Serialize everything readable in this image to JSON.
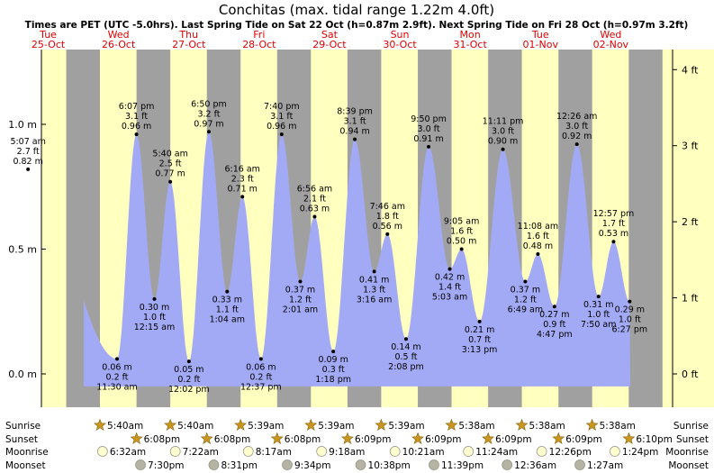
{
  "chart_data": {
    "type": "area",
    "title": "Conchitas (max. tidal range 1.22m 4.0ft)",
    "subtitle": "Times are PET (UTC -5.0hrs). Last Spring Tide on Sat 22 Oct (h=0.87m 2.9ft). Next Spring Tide on Fri 28 Oct (h=0.97m 3.2ft)",
    "days": [
      {
        "name": "Tue",
        "date": "25-Oct"
      },
      {
        "name": "Wed",
        "date": "26-Oct"
      },
      {
        "name": "Thu",
        "date": "27-Oct"
      },
      {
        "name": "Fri",
        "date": "28-Oct"
      },
      {
        "name": "Sat",
        "date": "29-Oct"
      },
      {
        "name": "Sun",
        "date": "30-Oct"
      },
      {
        "name": "Mon",
        "date": "31-Oct"
      },
      {
        "name": "Tue",
        "date": "01-Nov"
      },
      {
        "name": "Wed",
        "date": "02-Nov"
      }
    ],
    "y_left_ticks": [
      {
        "value": 0.0,
        "label": "0.0 m"
      },
      {
        "value": 0.5,
        "label": "0.5 m"
      },
      {
        "value": 1.0,
        "label": "1.0 m"
      }
    ],
    "y_right_ticks": [
      {
        "value": 0,
        "label": "0 ft"
      },
      {
        "value": 1,
        "label": "1 ft"
      },
      {
        "value": 2,
        "label": "2 ft"
      },
      {
        "value": 3,
        "label": "3 ft"
      },
      {
        "value": 4,
        "label": "4 ft"
      }
    ],
    "ylim_m": [
      -0.13,
      1.3
    ],
    "tides": [
      {
        "day": 0,
        "time": "5:07 am",
        "hour": 5.12,
        "h": 0.82,
        "type": "high",
        "ft": "2.7 ft",
        "m": "0.82 m"
      },
      {
        "day": 1,
        "time": "11:30 am",
        "hour": 11.5,
        "h": 0.06,
        "type": "low",
        "ft": "0.2 ft",
        "m": "0.06 m"
      },
      {
        "day": 1,
        "time": "6:07 pm",
        "hour": 18.12,
        "h": 0.96,
        "type": "high",
        "ft": "3.1 ft",
        "m": "0.96 m"
      },
      {
        "day": 2,
        "time": "12:15 am",
        "hour": 0.25,
        "h": 0.3,
        "type": "low",
        "ft": "1.0 ft",
        "m": "0.30 m"
      },
      {
        "day": 2,
        "time": "5:40 am",
        "hour": 5.67,
        "h": 0.77,
        "type": "high",
        "ft": "2.5 ft",
        "m": "0.77 m"
      },
      {
        "day": 2,
        "time": "12:02 pm",
        "hour": 12.03,
        "h": 0.05,
        "type": "low",
        "ft": "0.2 ft",
        "m": "0.05 m"
      },
      {
        "day": 2,
        "time": "6:50 pm",
        "hour": 18.83,
        "h": 0.97,
        "type": "high",
        "ft": "3.2 ft",
        "m": "0.97 m"
      },
      {
        "day": 3,
        "time": "1:04 am",
        "hour": 1.07,
        "h": 0.33,
        "type": "low",
        "ft": "1.1 ft",
        "m": "0.33 m"
      },
      {
        "day": 3,
        "time": "6:16 am",
        "hour": 6.27,
        "h": 0.71,
        "type": "high",
        "ft": "2.3 ft",
        "m": "0.71 m"
      },
      {
        "day": 3,
        "time": "12:37 pm",
        "hour": 12.62,
        "h": 0.06,
        "type": "low",
        "ft": "0.2 ft",
        "m": "0.06 m"
      },
      {
        "day": 3,
        "time": "7:40 pm",
        "hour": 19.67,
        "h": 0.96,
        "type": "high",
        "ft": "3.1 ft",
        "m": "0.96 m"
      },
      {
        "day": 4,
        "time": "2:01 am",
        "hour": 2.02,
        "h": 0.37,
        "type": "low",
        "ft": "1.2 ft",
        "m": "0.37 m"
      },
      {
        "day": 4,
        "time": "6:56 am",
        "hour": 6.93,
        "h": 0.63,
        "type": "high",
        "ft": "2.1 ft",
        "m": "0.63 m"
      },
      {
        "day": 4,
        "time": "1:18 pm",
        "hour": 13.3,
        "h": 0.09,
        "type": "low",
        "ft": "0.3 ft",
        "m": "0.09 m"
      },
      {
        "day": 4,
        "time": "8:39 pm",
        "hour": 20.65,
        "h": 0.94,
        "type": "high",
        "ft": "3.1 ft",
        "m": "0.94 m"
      },
      {
        "day": 5,
        "time": "3:16 am",
        "hour": 3.27,
        "h": 0.41,
        "type": "low",
        "ft": "1.3 ft",
        "m": "0.41 m"
      },
      {
        "day": 5,
        "time": "7:46 am",
        "hour": 7.77,
        "h": 0.56,
        "type": "high",
        "ft": "1.8 ft",
        "m": "0.56 m"
      },
      {
        "day": 5,
        "time": "2:08 pm",
        "hour": 14.13,
        "h": 0.14,
        "type": "low",
        "ft": "0.5 ft",
        "m": "0.14 m"
      },
      {
        "day": 5,
        "time": "9:50 pm",
        "hour": 21.83,
        "h": 0.91,
        "type": "high",
        "ft": "3.0 ft",
        "m": "0.91 m"
      },
      {
        "day": 6,
        "time": "5:03 am",
        "hour": 5.05,
        "h": 0.42,
        "type": "low",
        "ft": "1.4 ft",
        "m": "0.42 m"
      },
      {
        "day": 6,
        "time": "9:05 am",
        "hour": 9.08,
        "h": 0.5,
        "type": "high",
        "ft": "1.6 ft",
        "m": "0.50 m"
      },
      {
        "day": 6,
        "time": "3:13 pm",
        "hour": 15.22,
        "h": 0.21,
        "type": "low",
        "ft": "0.7 ft",
        "m": "0.21 m"
      },
      {
        "day": 6,
        "time": "11:11 pm",
        "hour": 23.18,
        "h": 0.9,
        "type": "high",
        "ft": "3.0 ft",
        "m": "0.90 m"
      },
      {
        "day": 7,
        "time": "6:49 am",
        "hour": 6.82,
        "h": 0.37,
        "type": "low",
        "ft": "1.2 ft",
        "m": "0.37 m"
      },
      {
        "day": 7,
        "time": "11:08 am",
        "hour": 11.13,
        "h": 0.48,
        "type": "high",
        "ft": "1.6 ft",
        "m": "0.48 m"
      },
      {
        "day": 7,
        "time": "4:47 pm",
        "hour": 16.78,
        "h": 0.27,
        "type": "low",
        "ft": "0.9 ft",
        "m": "0.27 m"
      },
      {
        "day": 8,
        "time": "12:26 am",
        "hour": 0.43,
        "h": 0.92,
        "type": "high",
        "ft": "3.0 ft",
        "m": "0.92 m"
      },
      {
        "day": 8,
        "time": "7:50 am",
        "hour": 7.83,
        "h": 0.31,
        "type": "low",
        "ft": "1.0 ft",
        "m": "0.31 m"
      },
      {
        "day": 8,
        "time": "12:57 pm",
        "hour": 12.95,
        "h": 0.53,
        "type": "high",
        "ft": "1.7 ft",
        "m": "0.53 m"
      },
      {
        "day": 8,
        "time": "6:27 pm",
        "hour": 18.45,
        "h": 0.29,
        "type": "low",
        "ft": "1.0 ft",
        "m": "0.29 m"
      }
    ],
    "sun": [
      {
        "day": 1,
        "sunrise": "5:40am",
        "sunset": "6:08pm"
      },
      {
        "day": 2,
        "sunrise": "5:40am",
        "sunset": "6:08pm"
      },
      {
        "day": 3,
        "sunrise": "5:39am",
        "sunset": "6:08pm"
      },
      {
        "day": 4,
        "sunrise": "5:39am",
        "sunset": "6:09pm"
      },
      {
        "day": 5,
        "sunrise": "5:39am",
        "sunset": "6:09pm"
      },
      {
        "day": 6,
        "sunrise": "5:38am",
        "sunset": "6:09pm"
      },
      {
        "day": 7,
        "sunrise": "5:38am",
        "sunset": "6:09pm"
      },
      {
        "day": 8,
        "sunrise": "5:38am",
        "sunset": "6:10pm"
      }
    ],
    "moon": [
      {
        "day": 1,
        "moonrise": "6:32am",
        "moonset": "7:30pm"
      },
      {
        "day": 2,
        "moonrise": "7:22am",
        "moonset": "8:31pm"
      },
      {
        "day": 3,
        "moonrise": "8:17am",
        "moonset": "9:34pm"
      },
      {
        "day": 4,
        "moonrise": "9:18am",
        "moonset": "10:38pm"
      },
      {
        "day": 5,
        "moonrise": "10:21am",
        "moonset": "11:39pm"
      },
      {
        "day": 6,
        "moonrise": "11:24am",
        "moonset": "12:36am"
      },
      {
        "day": 7,
        "moonrise": "12:26pm",
        "moonset": "1:27am"
      },
      {
        "day": 8,
        "moonrise": "1:24pm",
        "moonset": ""
      }
    ],
    "row_labels": [
      "Sunrise",
      "Sunset",
      "Moonrise",
      "Moonset"
    ],
    "colors": {
      "night": "#a0a0a0",
      "day": "#ffffc0",
      "water": "#a3aaf5",
      "day_label": "#e00000",
      "sun_icon": "#c8961e",
      "moonrise_icon": "#ffffd0",
      "moonset_icon": "#b4b4a4"
    }
  }
}
